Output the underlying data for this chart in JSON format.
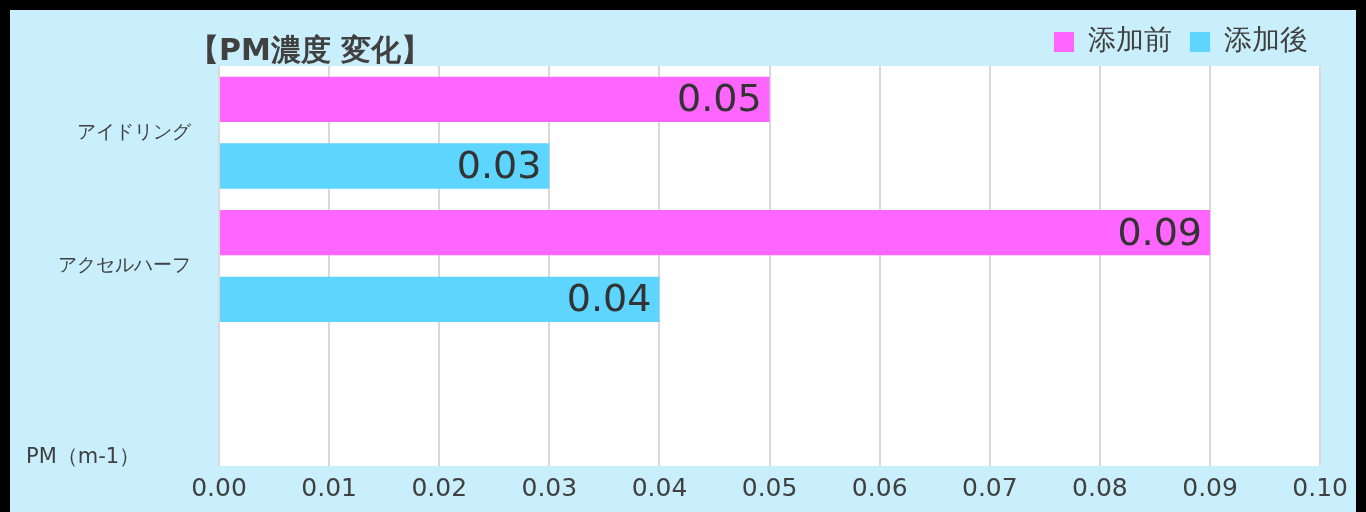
{
  "chart_data": {
    "type": "bar",
    "orientation": "horizontal",
    "title": "【PM濃度 変化】",
    "xlabel": "PM（m-1）",
    "categories": [
      "アイドリング",
      "アクセルハーフ",
      null
    ],
    "series": [
      {
        "name": "添加前",
        "color": "#ff66ff",
        "values": [
          0.05,
          0.09,
          null
        ]
      },
      {
        "name": "添加後",
        "color": "#5dd5ff",
        "values": [
          0.03,
          0.04,
          null
        ]
      }
    ],
    "xlim": [
      0,
      0.1
    ],
    "xticks": [
      {
        "value": 0,
        "label": "0.00"
      },
      {
        "value": 0.01,
        "label": "0.01"
      },
      {
        "value": 0.02,
        "label": "0.02"
      },
      {
        "value": 0.03,
        "label": "0.03"
      },
      {
        "value": 0.04,
        "label": "0.04"
      },
      {
        "value": 0.05,
        "label": "0.05"
      },
      {
        "value": 0.06,
        "label": "0.06"
      },
      {
        "value": 0.07,
        "label": "0.07"
      },
      {
        "value": 0.08,
        "label": "0.08"
      },
      {
        "value": 0.09,
        "label": "0.09"
      },
      {
        "value": 0.1,
        "label": "0.10"
      }
    ],
    "grid": "x",
    "legend": "top right",
    "data_labels": true
  }
}
